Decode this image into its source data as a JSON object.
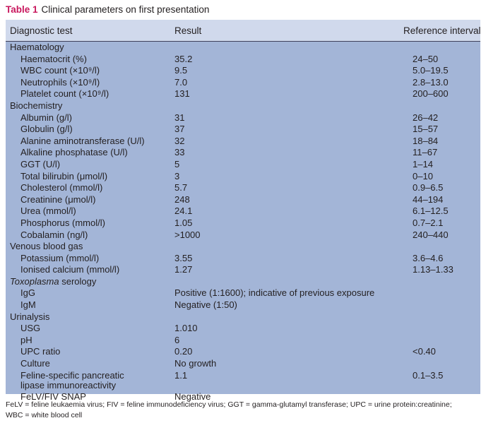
{
  "caption": {
    "label": "Table 1",
    "text": "Clinical parameters on first presentation"
  },
  "header": {
    "test": "Diagnostic test",
    "result": "Result",
    "reference": "Reference interval"
  },
  "rows": [
    {
      "test": "Haematology",
      "result": "",
      "reference": "",
      "type": "section"
    },
    {
      "test": "Haematocrit (%)",
      "result": "35.2",
      "reference": "24–50",
      "type": "item"
    },
    {
      "test": "WBC count (×10⁹/l)",
      "result": "9.5",
      "reference": "5.0–19.5",
      "type": "item"
    },
    {
      "test": "Neutrophils (×10⁹/l)",
      "result": "7.0",
      "reference": "2.8–13.0",
      "type": "item"
    },
    {
      "test": "Platelet count (×10⁹/l)",
      "result": "131",
      "reference": "200–600",
      "type": "item"
    },
    {
      "test": "Biochemistry",
      "result": "",
      "reference": "",
      "type": "section"
    },
    {
      "test": "Albumin (g/l)",
      "result": "31",
      "reference": "26–42",
      "type": "item"
    },
    {
      "test": "Globulin (g/l)",
      "result": "37",
      "reference": "15–57",
      "type": "item"
    },
    {
      "test": "Alanine aminotransferase (U/l)",
      "result": "32",
      "reference": "18–84",
      "type": "item"
    },
    {
      "test": "Alkaline phosphatase (U/l)",
      "result": "33",
      "reference": "11–67",
      "type": "item"
    },
    {
      "test": "GGT (U/l)",
      "result": "5",
      "reference": "1–14",
      "type": "item"
    },
    {
      "test": "Total bilirubin (μmol/l)",
      "result": "3",
      "reference": "0–10",
      "type": "item"
    },
    {
      "test": "Cholesterol (mmol/l)",
      "result": "5.7",
      "reference": "0.9–6.5",
      "type": "item"
    },
    {
      "test": "Creatinine (μmol/l)",
      "result": "248",
      "reference": "44–194",
      "type": "item"
    },
    {
      "test": "Urea (mmol/l)",
      "result": "24.1",
      "reference": "6.1–12.5",
      "type": "item"
    },
    {
      "test": "Phosphorus (mmol/l)",
      "result": "1.05",
      "reference": "0.7–2.1",
      "type": "item"
    },
    {
      "test": "Cobalamin (ng/l)",
      "result": ">1000",
      "reference": "240–440",
      "type": "item"
    },
    {
      "test": "Venous blood gas",
      "result": "",
      "reference": "",
      "type": "section"
    },
    {
      "test": "Potassium (mmol/l)",
      "result": "3.55",
      "reference": "3.6–4.6",
      "type": "item"
    },
    {
      "test": "Ionised calcium (mmol/l)",
      "result": "1.27",
      "reference": "1.13–1.33",
      "type": "item"
    },
    {
      "test": "Toxoplasma serology",
      "result": "",
      "reference": "",
      "type": "section-italic"
    },
    {
      "test": "IgG",
      "result": "Positive (1:1600); indicative of previous exposure",
      "reference": "",
      "type": "item"
    },
    {
      "test": "IgM",
      "result": "Negative (1:50)",
      "reference": "",
      "type": "item"
    },
    {
      "test": "Urinalysis",
      "result": "",
      "reference": "",
      "type": "section"
    },
    {
      "test": "USG",
      "result": "1.010",
      "reference": "",
      "type": "item"
    },
    {
      "test": "pH",
      "result": "6",
      "reference": "",
      "type": "item"
    },
    {
      "test": "UPC ratio",
      "result": "0.20",
      "reference": "<0.40",
      "type": "item"
    },
    {
      "test": "Culture",
      "result": "No growth",
      "reference": "",
      "type": "item"
    },
    {
      "test": "Feline-specific pancreatic\nlipase immunoreactivity",
      "result": "1.1",
      "reference": "0.1–3.5",
      "type": "item-tall"
    },
    {
      "test": "FeLV/FIV SNAP",
      "result": "Negative",
      "reference": "",
      "type": "item"
    }
  ],
  "footnote": {
    "line1": "FeLV = feline leukaemia virus; FIV = feline immunodeficiency virus; GGT = gamma-glutamyl transferase; UPC = urine protein:creatinine;",
    "line2": "WBC = white blood cell"
  },
  "colors": {
    "label": "#c8175d",
    "header_bg": "#d0d9ec",
    "body_bg": "#a3b5d7"
  }
}
